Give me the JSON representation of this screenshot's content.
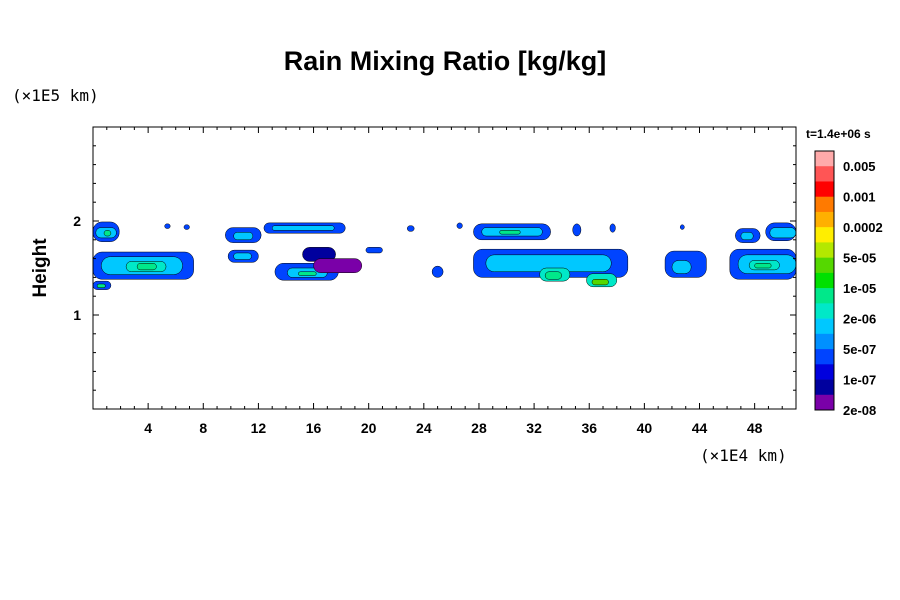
{
  "chart_data": {
    "type": "heatmap",
    "title": "Rain Mixing Ratio [kg/kg]",
    "ylabel": "Height",
    "xlabel": "",
    "x_unit": "(×1E4 km)",
    "y_unit": "(×1E5 km)",
    "time_label": "t=1.4e+06 s",
    "xlim": [
      0,
      51
    ],
    "ylim": [
      0,
      3
    ],
    "x_ticks": [
      4,
      8,
      12,
      16,
      20,
      24,
      28,
      32,
      36,
      40,
      44,
      48
    ],
    "y_ticks": [
      1,
      2
    ],
    "colorbar_levels": [
      "0.005",
      "0.001",
      "0.0002",
      "5e-05",
      "1e-05",
      "2e-06",
      "5e-07",
      "1e-07",
      "2e-08"
    ],
    "colorbar_colors": [
      "#ffaaaa",
      "#ff5555",
      "#ff0000",
      "#ff7a00",
      "#ffb000",
      "#ffee00",
      "#b4e800",
      "#55d800",
      "#00e000",
      "#00e88a",
      "#00e8c8",
      "#00c8ff",
      "#0090ff",
      "#0044ff",
      "#0000dd",
      "#00009e",
      "#7a00a8"
    ],
    "cells": [
      {
        "x0": 0.0,
        "x1": 1.9,
        "y0": 1.78,
        "y1": 1.99,
        "c": "#0044ff"
      },
      {
        "x0": 0.2,
        "x1": 1.7,
        "y0": 1.82,
        "y1": 1.93,
        "c": "#00c8ff"
      },
      {
        "x0": 0.8,
        "x1": 1.3,
        "y0": 1.84,
        "y1": 1.9,
        "c": "#00e88a"
      },
      {
        "x0": 5.2,
        "x1": 5.6,
        "y0": 1.92,
        "y1": 1.97,
        "c": "#0044ff"
      },
      {
        "x0": 6.6,
        "x1": 7.0,
        "y0": 1.91,
        "y1": 1.96,
        "c": "#0044ff"
      },
      {
        "x0": 9.6,
        "x1": 12.2,
        "y0": 1.77,
        "y1": 1.93,
        "c": "#0044ff"
      },
      {
        "x0": 10.2,
        "x1": 11.6,
        "y0": 1.8,
        "y1": 1.88,
        "c": "#00c8ff"
      },
      {
        "x0": 12.4,
        "x1": 18.3,
        "y0": 1.87,
        "y1": 1.98,
        "c": "#0044ff"
      },
      {
        "x0": 13.0,
        "x1": 17.5,
        "y0": 1.9,
        "y1": 1.95,
        "c": "#00c8ff"
      },
      {
        "x0": 22.8,
        "x1": 23.3,
        "y0": 1.89,
        "y1": 1.95,
        "c": "#0044ff"
      },
      {
        "x0": 26.4,
        "x1": 26.8,
        "y0": 1.92,
        "y1": 1.98,
        "c": "#0044ff"
      },
      {
        "x0": 27.6,
        "x1": 33.2,
        "y0": 1.8,
        "y1": 1.97,
        "c": "#0044ff"
      },
      {
        "x0": 28.2,
        "x1": 32.6,
        "y0": 1.84,
        "y1": 1.93,
        "c": "#00c8ff"
      },
      {
        "x0": 29.5,
        "x1": 31.0,
        "y0": 1.86,
        "y1": 1.9,
        "c": "#00e88a"
      },
      {
        "x0": 34.8,
        "x1": 35.4,
        "y0": 1.84,
        "y1": 1.97,
        "c": "#0044ff"
      },
      {
        "x0": 37.5,
        "x1": 37.9,
        "y0": 1.88,
        "y1": 1.97,
        "c": "#0044ff"
      },
      {
        "x0": 42.6,
        "x1": 42.9,
        "y0": 1.91,
        "y1": 1.96,
        "c": "#0044ff"
      },
      {
        "x0": 46.6,
        "x1": 48.4,
        "y0": 1.77,
        "y1": 1.92,
        "c": "#0044ff"
      },
      {
        "x0": 47.0,
        "x1": 47.9,
        "y0": 1.8,
        "y1": 1.88,
        "c": "#00c8ff"
      },
      {
        "x0": 48.8,
        "x1": 51.0,
        "y0": 1.79,
        "y1": 1.98,
        "c": "#0044ff"
      },
      {
        "x0": 49.1,
        "x1": 51.0,
        "y0": 1.82,
        "y1": 1.93,
        "c": "#00c8ff"
      },
      {
        "x0": 0.0,
        "x1": 7.3,
        "y0": 1.38,
        "y1": 1.67,
        "c": "#0044ff"
      },
      {
        "x0": 0.6,
        "x1": 6.5,
        "y0": 1.43,
        "y1": 1.62,
        "c": "#00c8ff"
      },
      {
        "x0": 2.4,
        "x1": 5.3,
        "y0": 1.46,
        "y1": 1.57,
        "c": "#00e8c8"
      },
      {
        "x0": 3.2,
        "x1": 4.6,
        "y0": 1.48,
        "y1": 1.55,
        "c": "#00e88a"
      },
      {
        "x0": 0.0,
        "x1": 1.3,
        "y0": 1.27,
        "y1": 1.36,
        "c": "#0044ff"
      },
      {
        "x0": 0.3,
        "x1": 0.9,
        "y0": 1.29,
        "y1": 1.33,
        "c": "#00e88a"
      },
      {
        "x0": 9.8,
        "x1": 12.0,
        "y0": 1.56,
        "y1": 1.69,
        "c": "#0044ff"
      },
      {
        "x0": 10.2,
        "x1": 11.5,
        "y0": 1.59,
        "y1": 1.66,
        "c": "#00c8ff"
      },
      {
        "x0": 13.2,
        "x1": 17.8,
        "y0": 1.37,
        "y1": 1.55,
        "c": "#0044ff"
      },
      {
        "x0": 14.1,
        "x1": 17.0,
        "y0": 1.4,
        "y1": 1.5,
        "c": "#00c8ff"
      },
      {
        "x0": 14.9,
        "x1": 16.2,
        "y0": 1.42,
        "y1": 1.46,
        "c": "#00e88a"
      },
      {
        "x0": 15.2,
        "x1": 17.6,
        "y0": 1.57,
        "y1": 1.72,
        "c": "#00009e"
      },
      {
        "x0": 16.0,
        "x1": 19.5,
        "y0": 1.45,
        "y1": 1.6,
        "c": "#7a00a8"
      },
      {
        "x0": 19.8,
        "x1": 21.0,
        "y0": 1.66,
        "y1": 1.72,
        "c": "#0044ff"
      },
      {
        "x0": 24.6,
        "x1": 25.4,
        "y0": 1.4,
        "y1": 1.52,
        "c": "#0044ff"
      },
      {
        "x0": 27.6,
        "x1": 38.8,
        "y0": 1.4,
        "y1": 1.7,
        "c": "#0044ff"
      },
      {
        "x0": 28.5,
        "x1": 37.6,
        "y0": 1.46,
        "y1": 1.64,
        "c": "#00c8ff"
      },
      {
        "x0": 32.4,
        "x1": 34.6,
        "y0": 1.36,
        "y1": 1.5,
        "c": "#00e8c8"
      },
      {
        "x0": 32.8,
        "x1": 34.0,
        "y0": 1.38,
        "y1": 1.46,
        "c": "#00e88a"
      },
      {
        "x0": 35.8,
        "x1": 38.0,
        "y0": 1.3,
        "y1": 1.44,
        "c": "#00e8c8"
      },
      {
        "x0": 36.2,
        "x1": 37.4,
        "y0": 1.32,
        "y1": 1.38,
        "c": "#55d800"
      },
      {
        "x0": 41.5,
        "x1": 44.5,
        "y0": 1.4,
        "y1": 1.68,
        "c": "#0044ff"
      },
      {
        "x0": 42.0,
        "x1": 43.4,
        "y0": 1.44,
        "y1": 1.58,
        "c": "#00c8ff"
      },
      {
        "x0": 46.2,
        "x1": 51.0,
        "y0": 1.38,
        "y1": 1.7,
        "c": "#0044ff"
      },
      {
        "x0": 46.8,
        "x1": 51.0,
        "y0": 1.44,
        "y1": 1.64,
        "c": "#00c8ff"
      },
      {
        "x0": 47.6,
        "x1": 49.8,
        "y0": 1.48,
        "y1": 1.58,
        "c": "#00e8c8"
      },
      {
        "x0": 48.0,
        "x1": 49.2,
        "y0": 1.5,
        "y1": 1.55,
        "c": "#00e88a"
      }
    ]
  }
}
